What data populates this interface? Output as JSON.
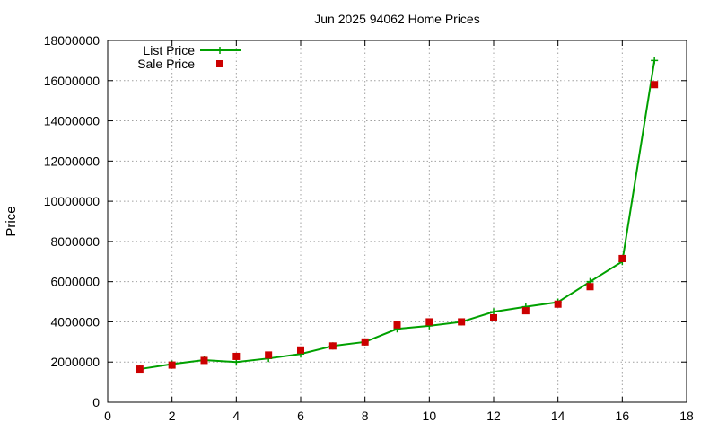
{
  "chart_data": {
    "type": "line",
    "title": "Jun 2025 94062 Home Prices",
    "xlabel": "",
    "ylabel": "Price",
    "xlim": [
      0,
      18
    ],
    "ylim": [
      0,
      18000000
    ],
    "xticks": [
      0,
      2,
      4,
      6,
      8,
      10,
      12,
      14,
      16,
      18
    ],
    "yticks": [
      0,
      2000000,
      4000000,
      6000000,
      8000000,
      10000000,
      12000000,
      14000000,
      16000000,
      18000000
    ],
    "grid": true,
    "legend_position": "top-left",
    "series": [
      {
        "name": "List Price",
        "style": "line-with-plus-markers",
        "color": "#00a000",
        "x": [
          1,
          2,
          3,
          4,
          5,
          6,
          7,
          8,
          9,
          10,
          11,
          12,
          13,
          14,
          15,
          16,
          17
        ],
        "values": [
          1650000,
          1900000,
          2100000,
          2000000,
          2180000,
          2400000,
          2800000,
          3000000,
          3650000,
          3800000,
          4000000,
          4500000,
          4750000,
          4980000,
          6000000,
          7000000,
          17000000
        ]
      },
      {
        "name": "Sale Price",
        "style": "square-markers",
        "color": "#cc0000",
        "x": [
          1,
          2,
          3,
          4,
          5,
          6,
          7,
          8,
          9,
          10,
          11,
          12,
          13,
          14,
          15,
          16,
          17
        ],
        "values": [
          1650000,
          1850000,
          2080000,
          2280000,
          2350000,
          2600000,
          2800000,
          3000000,
          3850000,
          4000000,
          4000000,
          4200000,
          4550000,
          4880000,
          5750000,
          7150000,
          15800000
        ]
      }
    ]
  }
}
